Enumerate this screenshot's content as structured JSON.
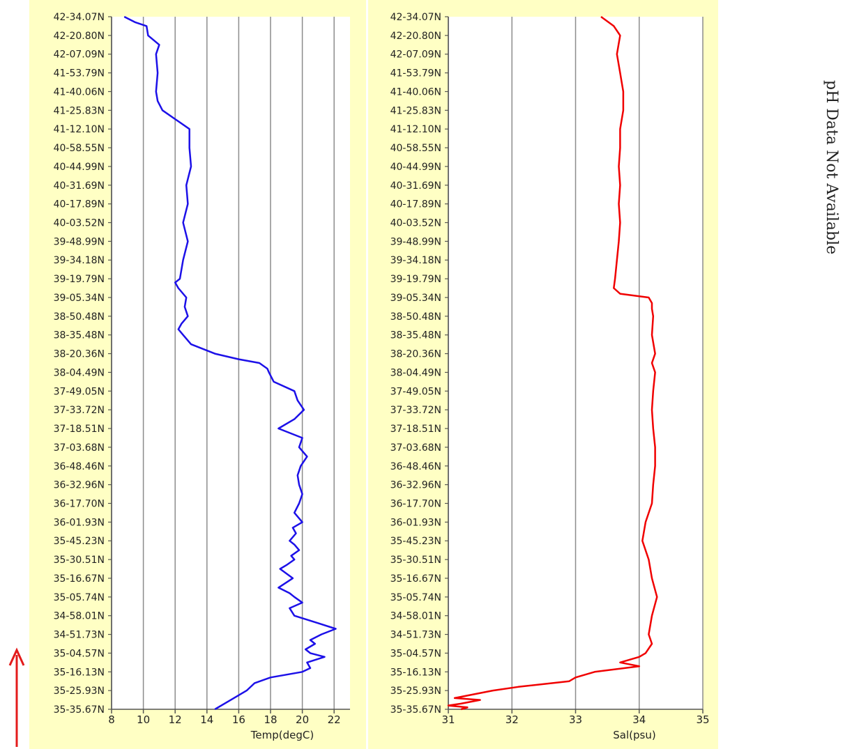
{
  "side_note": "pH Data Not Available",
  "colors": {
    "panel_bg": "#ffffc4",
    "plot_bg": "#ffffff",
    "grid": "#8c8c8c",
    "temp_line": "#1c10e8",
    "sal_line": "#f00000",
    "arrow": "#e31b1b"
  },
  "chart_data": [
    {
      "type": "line",
      "xlabel": "Temp(degC)",
      "xlim": [
        8,
        23
      ],
      "xticks": [
        8,
        10,
        12,
        14,
        16,
        18,
        20,
        22
      ],
      "grid": true,
      "y_axis_note": "latitude labels, top to bottom",
      "yticks": [
        "42-34.07N",
        "42-20.80N",
        "42-07.09N",
        "41-53.79N",
        "41-40.06N",
        "41-25.83N",
        "41-12.10N",
        "40-58.55N",
        "40-44.99N",
        "40-31.69N",
        "40-17.89N",
        "40-03.52N",
        "39-48.99N",
        "39-34.18N",
        "39-19.79N",
        "39-05.34N",
        "38-50.48N",
        "38-35.48N",
        "38-20.36N",
        "38-04.49N",
        "37-49.05N",
        "37-33.72N",
        "37-18.51N",
        "37-03.68N",
        "36-48.46N",
        "36-32.96N",
        "36-17.70N",
        "36-01.93N",
        "35-45.23N",
        "35-30.51N",
        "35-16.67N",
        "35-05.74N",
        "34-58.01N",
        "34-51.73N",
        "35-04.57N",
        "35-16.13N",
        "35-25.93N",
        "35-35.67N"
      ],
      "series": [
        {
          "y": [
            0,
            0.3,
            0.5,
            1,
            1.5,
            2,
            3,
            4,
            4.5,
            5,
            6,
            7,
            8,
            9,
            10,
            11,
            12,
            13,
            14,
            14.2,
            14.5,
            15,
            15.5,
            16,
            16.4,
            16.7,
            17,
            17.5,
            18,
            18.3,
            18.5,
            18.8,
            19,
            19.5,
            20,
            20.5,
            21,
            21.5,
            22,
            22.5,
            23,
            23.5,
            24,
            24.5,
            25,
            25.5,
            26,
            26.5,
            27,
            27.3,
            27.6,
            28,
            28.2,
            28.5,
            28.8,
            29,
            29.3,
            29.5,
            30,
            30.5,
            30.8,
            31,
            31.3,
            31.6,
            32,
            32.4,
            32.7,
            33,
            33.3,
            33.5,
            33.8,
            34,
            34.2,
            34.5,
            34.8,
            35,
            35.3,
            35.6,
            36,
            36.5,
            37
          ],
          "values": [
            8.8,
            9.5,
            10.2,
            10.3,
            11,
            10.8,
            10.9,
            10.8,
            10.9,
            11.2,
            12.9,
            12.9,
            13,
            12.7,
            12.8,
            12.5,
            12.8,
            12.5,
            12.3,
            12.0,
            12.2,
            12.7,
            12.6,
            12.8,
            12.4,
            12.2,
            12.5,
            13,
            14.5,
            16,
            17.3,
            17.8,
            17.9,
            18.2,
            19.5,
            19.7,
            20.1,
            19.5,
            18.5,
            20.0,
            19.8,
            20.3,
            19.9,
            19.7,
            19.8,
            20.0,
            19.8,
            19.5,
            20.0,
            19.4,
            19.6,
            19.2,
            19.5,
            19.8,
            19.3,
            19.5,
            19.0,
            18.6,
            19.4,
            18.5,
            19.2,
            19.5,
            20.0,
            19.2,
            19.5,
            21.0,
            22.1,
            21.2,
            20.5,
            20.8,
            20.2,
            20.5,
            21.4,
            20.3,
            20.5,
            20.0,
            18.0,
            17.0,
            16.5,
            15.5,
            14.5
          ]
        }
      ]
    },
    {
      "type": "line",
      "xlabel": "Sal(psu)",
      "xlim": [
        31,
        35
      ],
      "xticks": [
        31,
        32,
        33,
        34,
        35
      ],
      "grid": true,
      "y_axis_note": "latitude labels, top to bottom",
      "yticks": [
        "42-34.07N",
        "42-20.80N",
        "42-07.09N",
        "41-53.79N",
        "41-40.06N",
        "41-25.83N",
        "41-12.10N",
        "40-58.55N",
        "40-44.99N",
        "40-31.69N",
        "40-17.89N",
        "40-03.52N",
        "39-48.99N",
        "39-34.18N",
        "39-19.79N",
        "39-05.34N",
        "38-50.48N",
        "38-35.48N",
        "38-20.36N",
        "38-04.49N",
        "37-49.05N",
        "37-33.72N",
        "37-18.51N",
        "37-03.68N",
        "36-48.46N",
        "36-32.96N",
        "36-17.70N",
        "36-01.93N",
        "35-45.23N",
        "35-30.51N",
        "35-16.67N",
        "35-05.74N",
        "34-58.01N",
        "34-51.73N",
        "35-04.57N",
        "35-16.13N",
        "35-25.93N",
        "35-35.67N"
      ],
      "series": [
        {
          "y": [
            0,
            0.5,
            1,
            2,
            3,
            4,
            5,
            6,
            7,
            8,
            9,
            10,
            11,
            12,
            13,
            14,
            14.5,
            14.8,
            15,
            15.3,
            15.6,
            16,
            17,
            18,
            18.5,
            19,
            20,
            21,
            22,
            23,
            24,
            25,
            26,
            27,
            28,
            29,
            30,
            31,
            32,
            33,
            33.5,
            34,
            34.2,
            34.5,
            34.7,
            35,
            35.3,
            35.5,
            35.8,
            36,
            36.2,
            36.4,
            36.5,
            36.7,
            36.8,
            36.9,
            37
          ],
          "values": [
            33.4,
            33.6,
            33.7,
            33.65,
            33.7,
            33.75,
            33.75,
            33.7,
            33.7,
            33.68,
            33.7,
            33.68,
            33.7,
            33.68,
            33.65,
            33.62,
            33.6,
            33.7,
            34.15,
            34.2,
            34.2,
            34.22,
            34.2,
            34.25,
            34.2,
            34.25,
            34.22,
            34.2,
            34.22,
            34.25,
            34.25,
            34.22,
            34.2,
            34.1,
            34.05,
            34.15,
            34.2,
            34.28,
            34.2,
            34.15,
            34.2,
            34.1,
            34.0,
            33.7,
            34.0,
            33.3,
            33.0,
            32.9,
            32.1,
            31.7,
            31.4,
            31.1,
            31.5,
            31.2,
            31.0,
            31.3,
            31.2
          ]
        }
      ]
    }
  ]
}
